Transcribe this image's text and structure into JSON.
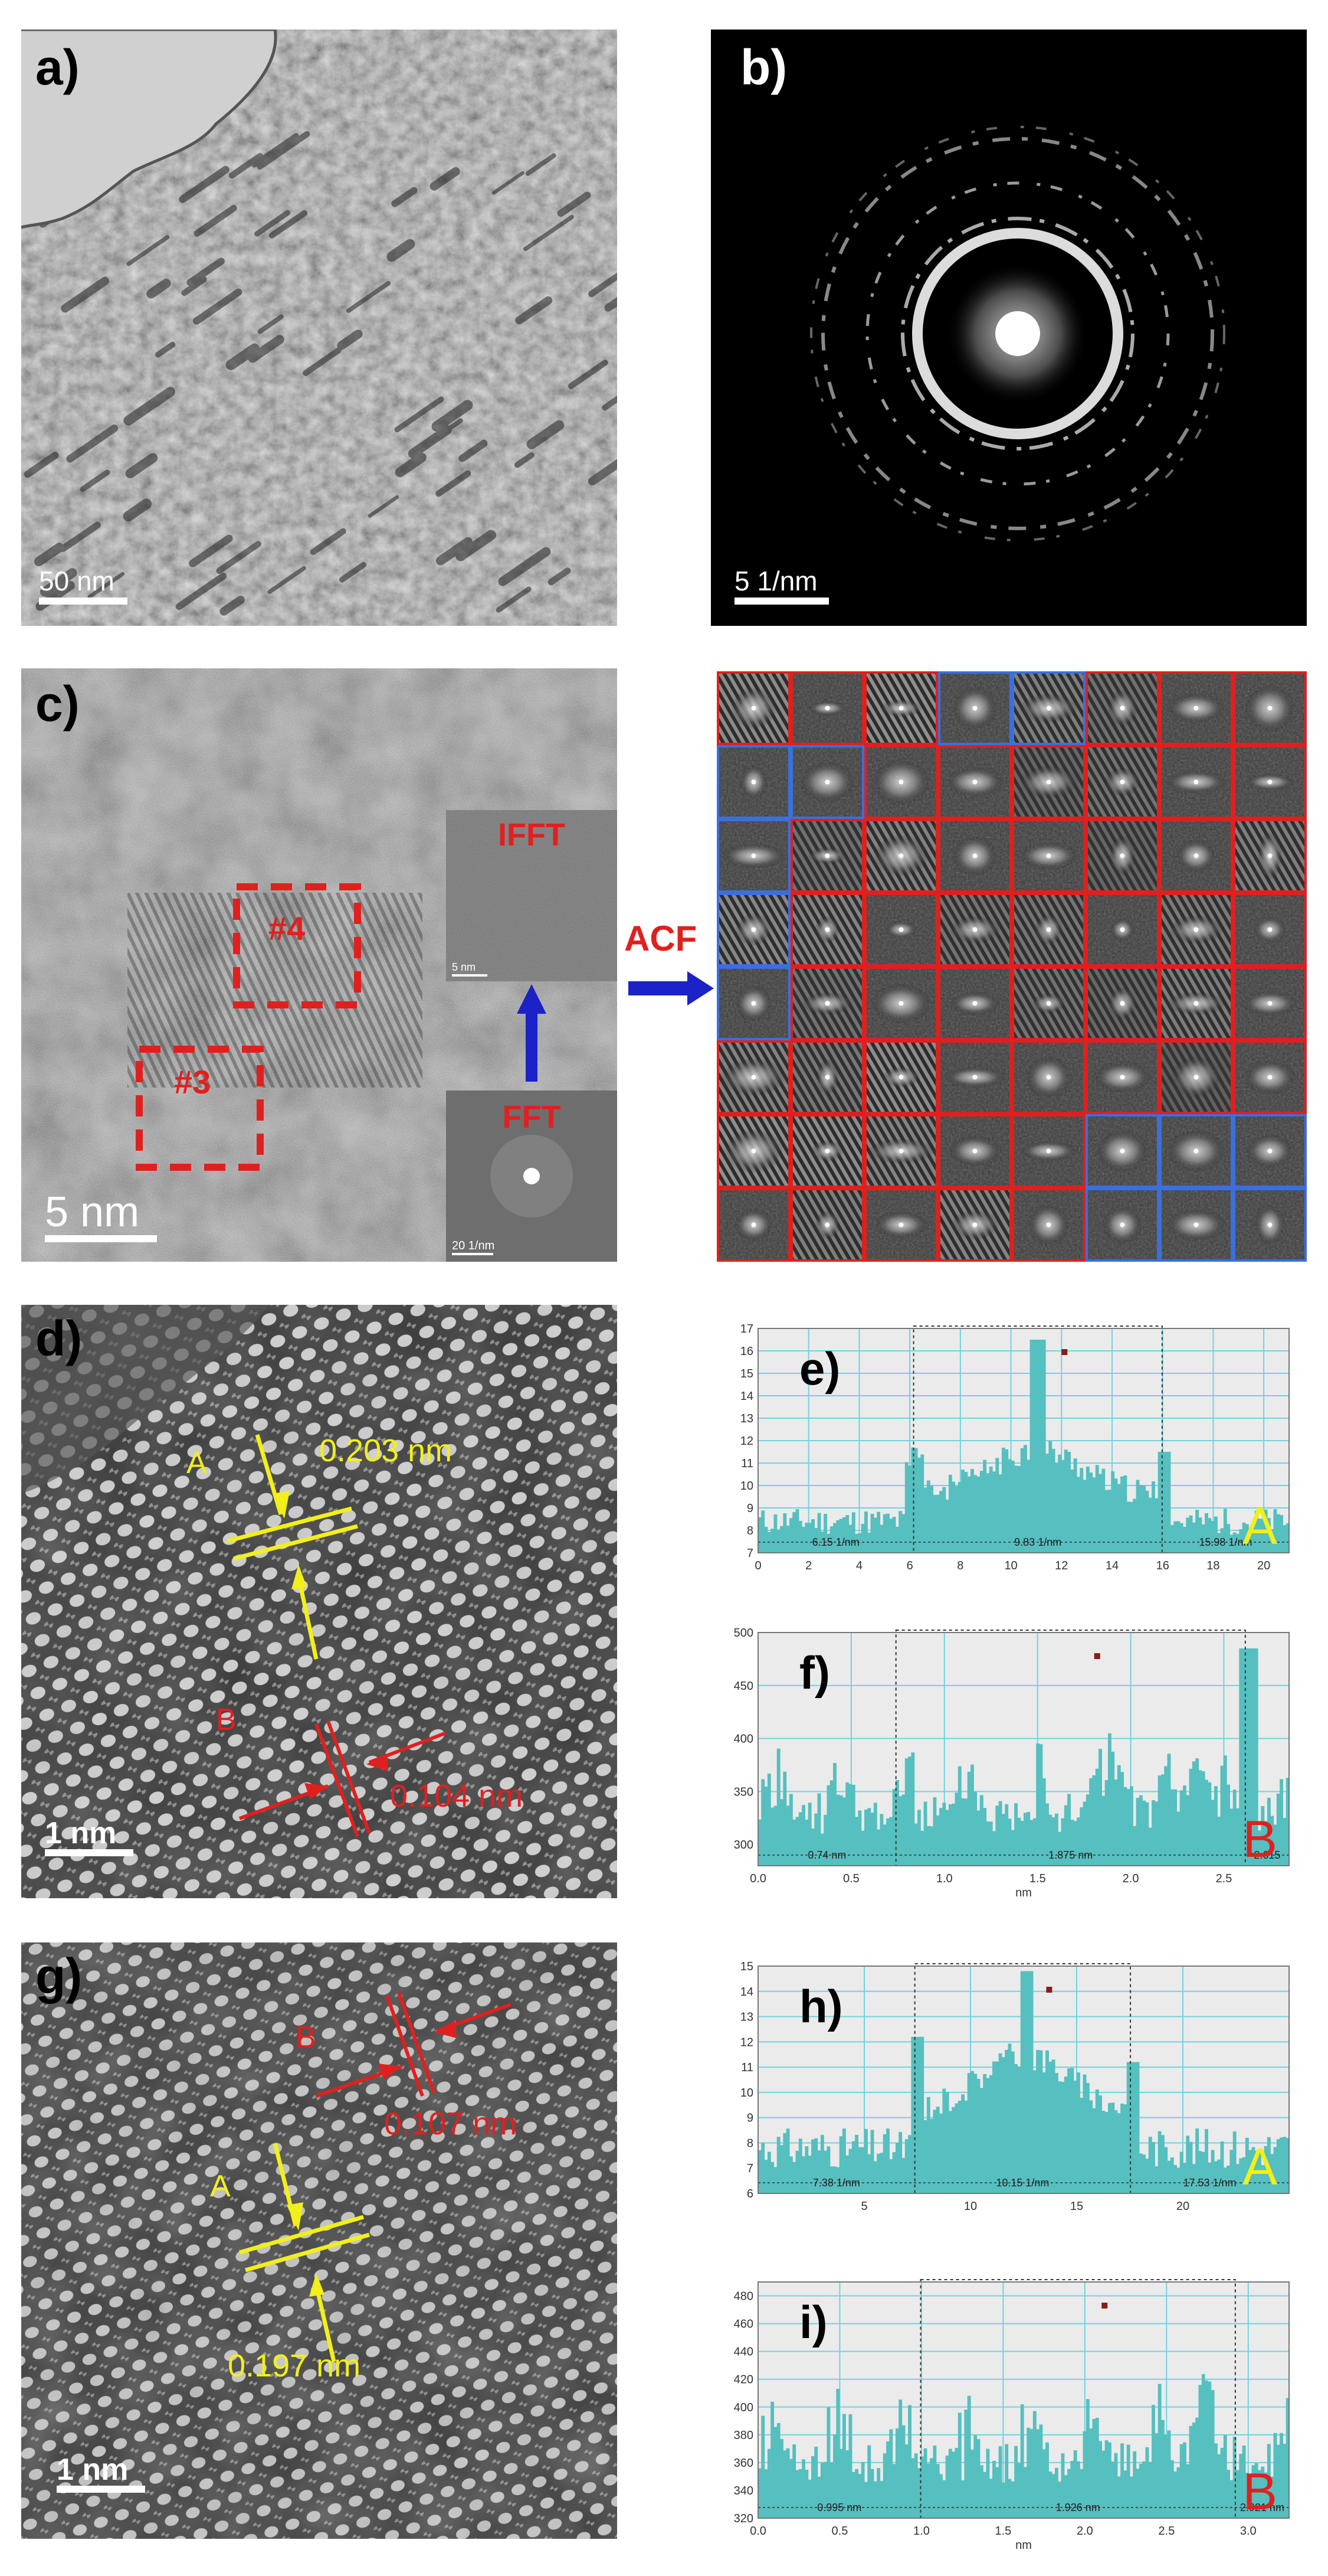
{
  "panels": {
    "a": {
      "label": "a)",
      "scale": "50 nm"
    },
    "b": {
      "label": "b)",
      "scale": "5 1/nm"
    },
    "c": {
      "label": "c)",
      "scale": "5 nm",
      "box3": "#3",
      "box4": "#4",
      "ifft_label": "IFFT",
      "ifft_scale": "5 nm",
      "fft_label": "FFT",
      "fft_scale": "20 1/nm",
      "acf_label": "ACF"
    },
    "d": {
      "label": "d)",
      "A": "A",
      "B": "B",
      "dA": "0.203 nm",
      "dB": "0.104 nm",
      "scale": "1 nm"
    },
    "g": {
      "label": "g)",
      "A": "A",
      "B": "B",
      "dA": "0.197 nm",
      "dB": "0.107 nm",
      "scale": "1 nm"
    }
  },
  "colors": {
    "yellow": "#f2ef1b",
    "red": "#e0201e",
    "teal": "#56bfbf",
    "grid": "#6fd3e0",
    "navy": "#1a22c8"
  },
  "chart_data": [
    {
      "panel": "e",
      "label": "e)",
      "type": "area",
      "letter": "A",
      "xlim": [
        0,
        21
      ],
      "ylim": [
        7,
        17
      ],
      "xticks": [
        "0",
        "2",
        "4",
        "6",
        "8",
        "10",
        "12",
        "14",
        "16",
        "18",
        "20"
      ],
      "yticks": [
        "7",
        "8",
        "9",
        "10",
        "11",
        "12",
        "13",
        "14",
        "15",
        "16",
        "17"
      ],
      "annotations": [
        "6.15 1/nm",
        "9.83 1/nm",
        "15.98 1/nm"
      ],
      "xlabel": ""
    },
    {
      "panel": "f",
      "label": "f)",
      "type": "area",
      "letter": "B",
      "xlim": [
        0,
        2.85
      ],
      "ylim": [
        280,
        500
      ],
      "xticks": [
        "0.0",
        "0.5",
        "1.0",
        "1.5",
        "2.0",
        "2.5"
      ],
      "yticks": [
        "300",
        "350",
        "400",
        "450",
        "500"
      ],
      "annotations": [
        "0.74 nm",
        "1.875 nm",
        "2.615"
      ],
      "xlabel": "nm"
    },
    {
      "panel": "h",
      "label": "h)",
      "type": "area",
      "letter": "A",
      "xlim": [
        0,
        25
      ],
      "ylim": [
        6,
        15
      ],
      "xticks": [
        "5",
        "10",
        "15",
        "20"
      ],
      "yticks": [
        "6",
        "7",
        "8",
        "9",
        "10",
        "11",
        "12",
        "13",
        "14",
        "15"
      ],
      "annotations": [
        "7.38 1/nm",
        "10.15 1/nm",
        "17.53 1/nm"
      ],
      "xlabel": ""
    },
    {
      "panel": "i",
      "label": "i)",
      "type": "area",
      "letter": "B",
      "xlim": [
        0,
        3.25
      ],
      "ylim": [
        320,
        490
      ],
      "xticks": [
        "0.0",
        "0.5",
        "1.0",
        "1.5",
        "2.0",
        "2.5",
        "3.0"
      ],
      "yticks": [
        "320",
        "340",
        "360",
        "380",
        "400",
        "420",
        "440",
        "460",
        "480"
      ],
      "annotations": [
        "0.995 nm",
        "1.926 nm",
        "2.921 nm"
      ],
      "xlabel": "nm"
    }
  ]
}
